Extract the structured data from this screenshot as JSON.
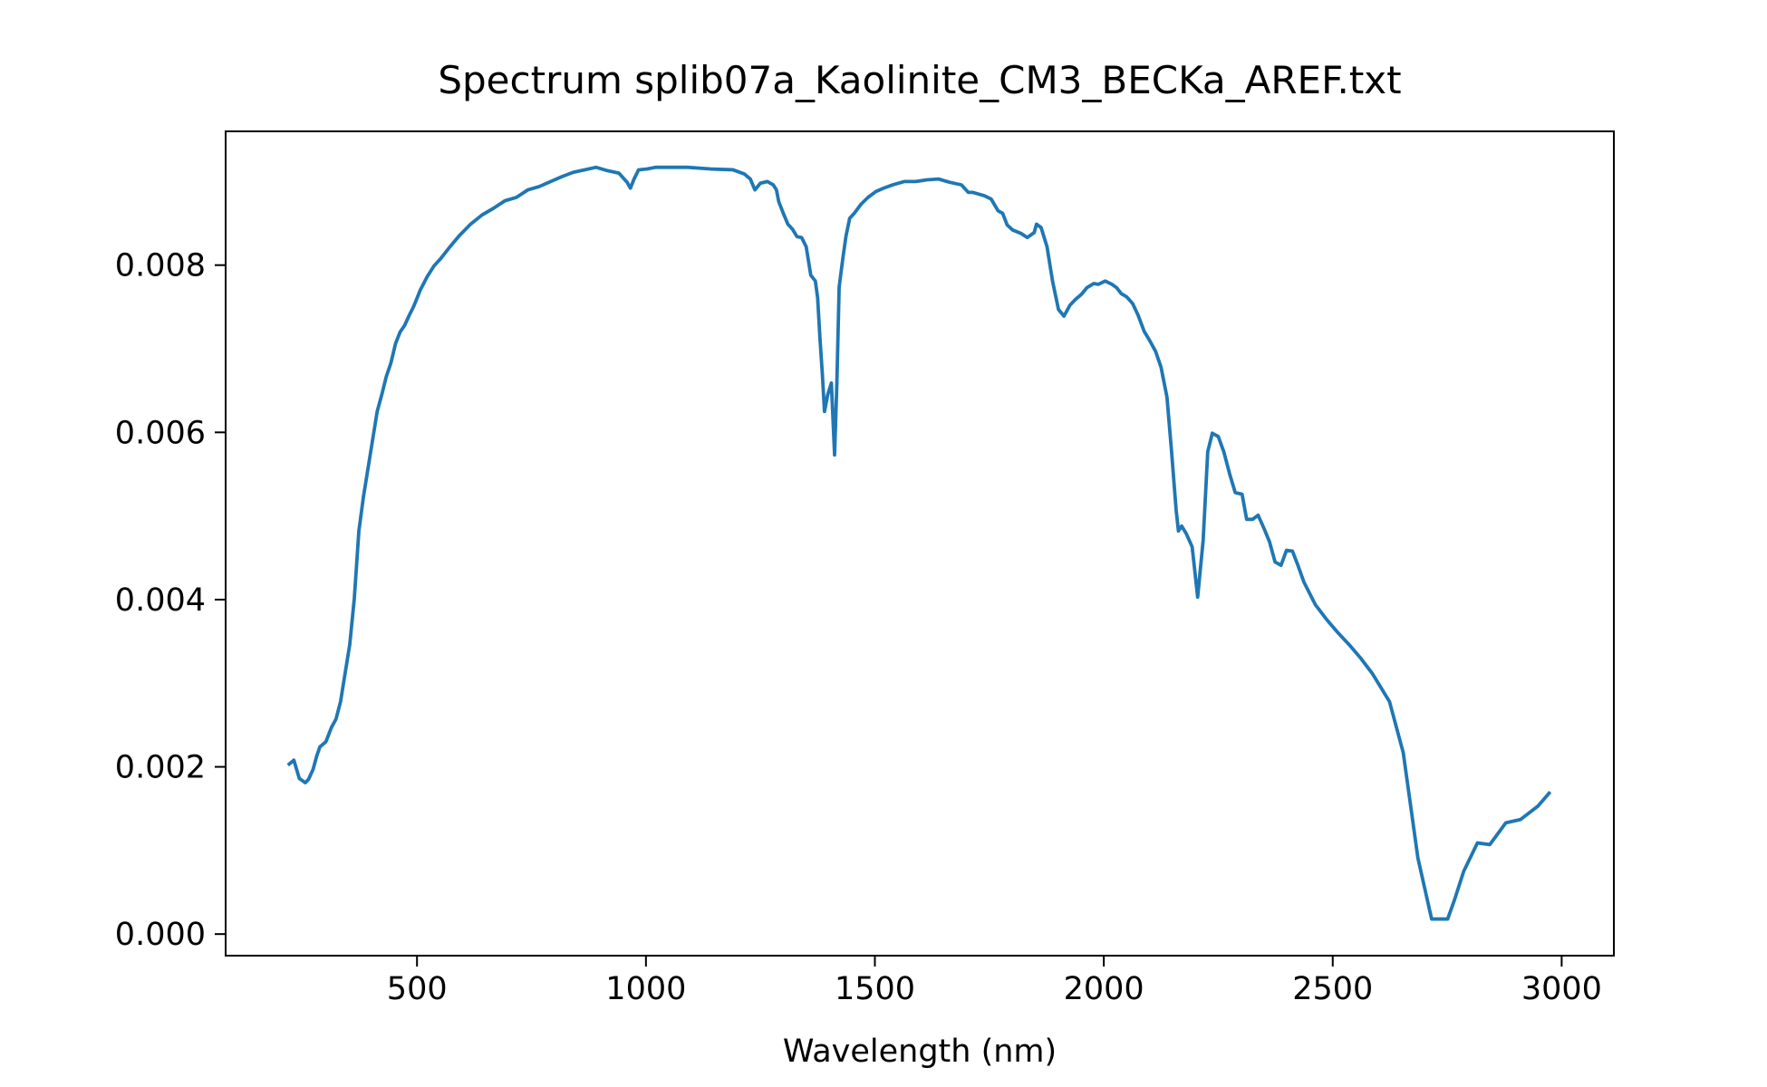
{
  "chart_data": {
    "type": "line",
    "title": "Spectrum splib07a_Kaolinite_CM3_BECKa_AREF.txt",
    "xlabel": "Wavelength (nm)",
    "color": "#1f77b4",
    "xlim": [
      82,
      3114
    ],
    "ylim": [
      -0.000258,
      0.0096
    ],
    "xticks": [
      500,
      1000,
      1500,
      2000,
      2500,
      3000
    ],
    "yticks": [
      {
        "value": 0,
        "label": "0.000"
      },
      {
        "value": 0.002,
        "label": "0.002"
      },
      {
        "value": 0.004,
        "label": "0.004"
      },
      {
        "value": 0.006,
        "label": "0.006"
      },
      {
        "value": 0.008,
        "label": "0.008"
      }
    ],
    "x": [
      218,
      231,
      243,
      256,
      263,
      273,
      281,
      288,
      301,
      313,
      323,
      333,
      343,
      353,
      363,
      373,
      383,
      393,
      403,
      413,
      423,
      433,
      443,
      453,
      463,
      473,
      483,
      493,
      507,
      522,
      537,
      552,
      572,
      592,
      617,
      642,
      667,
      692,
      717,
      742,
      767,
      792,
      817,
      841,
      866,
      891,
      916,
      941,
      959,
      966,
      974,
      984,
      1003,
      1021,
      1041,
      1091,
      1141,
      1190,
      1215,
      1228,
      1238,
      1250,
      1265,
      1278,
      1285,
      1290,
      1300,
      1310,
      1320,
      1330,
      1340,
      1350,
      1360,
      1370,
      1375,
      1380,
      1385,
      1390,
      1397,
      1405,
      1412,
      1417,
      1422,
      1430,
      1437,
      1445,
      1455,
      1470,
      1485,
      1502,
      1519,
      1539,
      1564,
      1589,
      1614,
      1639,
      1664,
      1689,
      1704,
      1714,
      1739,
      1754,
      1769,
      1779,
      1789,
      1801,
      1819,
      1833,
      1848,
      1853,
      1863,
      1876,
      1888,
      1901,
      1913,
      1926,
      1938,
      1951,
      1963,
      1978,
      1988,
      2003,
      2018,
      2028,
      2038,
      2050,
      2063,
      2075,
      2088,
      2100,
      2113,
      2125,
      2138,
      2148,
      2158,
      2163,
      2170,
      2180,
      2193,
      2205,
      2217,
      2227,
      2237,
      2250,
      2262,
      2275,
      2287,
      2302,
      2312,
      2325,
      2337,
      2350,
      2362,
      2374,
      2387,
      2399,
      2412,
      2424,
      2437,
      2462,
      2487,
      2512,
      2536,
      2561,
      2586,
      2624,
      2654,
      2686,
      2716,
      2736,
      2751,
      2766,
      2786,
      2816,
      2843,
      2878,
      2910,
      2948,
      2975
    ],
    "values": [
      0.00202,
      0.00208,
      0.00186,
      0.00181,
      0.00185,
      0.00197,
      0.00213,
      0.00224,
      0.0023,
      0.00247,
      0.00257,
      0.00278,
      0.00312,
      0.00346,
      0.00401,
      0.00482,
      0.00523,
      0.00557,
      0.00591,
      0.00625,
      0.00645,
      0.00667,
      0.00683,
      0.00706,
      0.0072,
      0.00728,
      0.0074,
      0.00751,
      0.0077,
      0.00786,
      0.00799,
      0.00808,
      0.00822,
      0.00835,
      0.00849,
      0.0086,
      0.00868,
      0.00877,
      0.00881,
      0.0089,
      0.00894,
      0.009,
      0.00906,
      0.00911,
      0.00914,
      0.00917,
      0.00913,
      0.0091,
      0.00899,
      0.00892,
      0.00903,
      0.00914,
      0.00915,
      0.00917,
      0.00917,
      0.00917,
      0.00915,
      0.00914,
      0.00909,
      0.00903,
      0.0089,
      0.00898,
      0.009,
      0.00896,
      0.0089,
      0.00876,
      0.00862,
      0.00849,
      0.00843,
      0.00834,
      0.00833,
      0.00822,
      0.00788,
      0.00781,
      0.00761,
      0.00713,
      0.00672,
      0.00625,
      0.00645,
      0.00659,
      0.00573,
      0.00659,
      0.00774,
      0.00808,
      0.00835,
      0.00856,
      0.00862,
      0.00873,
      0.00881,
      0.00888,
      0.00892,
      0.00896,
      0.009,
      0.009,
      0.00902,
      0.00903,
      0.00899,
      0.00896,
      0.00887,
      0.00887,
      0.00883,
      0.00879,
      0.00865,
      0.00862,
      0.00848,
      0.00842,
      0.00838,
      0.00833,
      0.00839,
      0.00849,
      0.00845,
      0.00822,
      0.00781,
      0.00747,
      0.00739,
      0.00752,
      0.00759,
      0.00765,
      0.00773,
      0.00778,
      0.00777,
      0.00781,
      0.00777,
      0.00773,
      0.00766,
      0.00762,
      0.00754,
      0.0074,
      0.00721,
      0.0071,
      0.00697,
      0.00678,
      0.00642,
      0.00577,
      0.00507,
      0.00482,
      0.00488,
      0.00479,
      0.00463,
      0.00403,
      0.00471,
      0.00577,
      0.00599,
      0.00595,
      0.00577,
      0.0055,
      0.00528,
      0.00526,
      0.00496,
      0.00496,
      0.00501,
      0.00485,
      0.00469,
      0.00445,
      0.00441,
      0.00459,
      0.00458,
      0.00441,
      0.00421,
      0.00394,
      0.00376,
      0.0036,
      0.00346,
      0.0033,
      0.00312,
      0.00278,
      0.00217,
      0.00091,
      0.00018,
      0.00018,
      0.00018,
      0.00041,
      0.00075,
      0.00109,
      0.00107,
      0.00133,
      0.00137,
      0.00153,
      0.0017
    ]
  }
}
